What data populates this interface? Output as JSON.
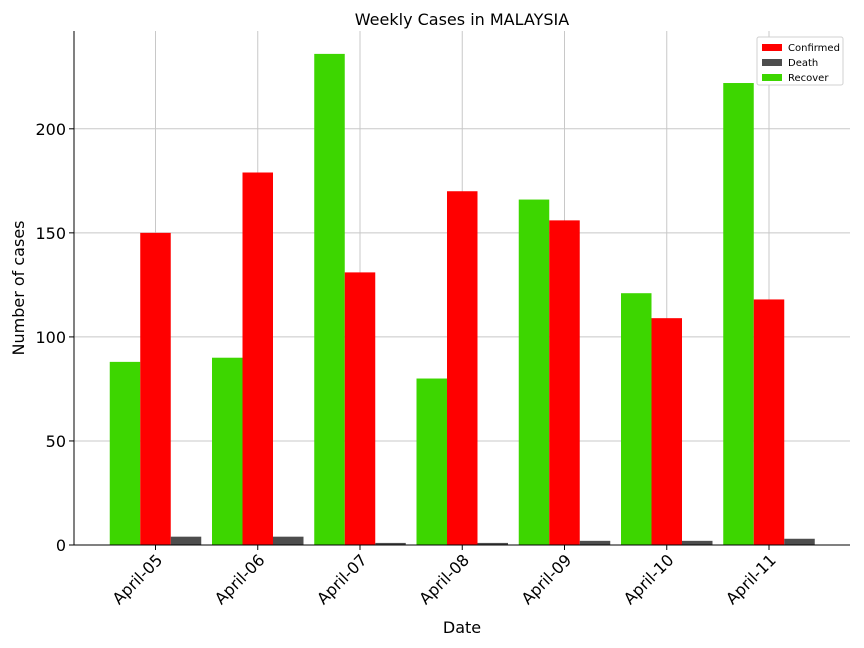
{
  "chart_data": {
    "type": "bar",
    "title": "Weekly Cases in MALAYSIA",
    "xlabel": "Date",
    "ylabel": "Number of cases",
    "categories": [
      "April-05",
      "April-06",
      "April-07",
      "April-08",
      "April-09",
      "April-10",
      "April-11"
    ],
    "series": [
      {
        "name": "Recover",
        "color": "#3dd600",
        "values": [
          88,
          90,
          236,
          80,
          166,
          121,
          222
        ]
      },
      {
        "name": "Confirmed",
        "color": "#ff0000",
        "values": [
          150,
          179,
          131,
          170,
          156,
          109,
          118
        ]
      },
      {
        "name": "Death",
        "color": "#4d4d4d",
        "values": [
          4,
          4,
          1,
          1,
          2,
          2,
          3
        ]
      }
    ],
    "legend_order": [
      "Confirmed",
      "Death",
      "Recover"
    ],
    "ylim": [
      0,
      247
    ],
    "yticks": [
      0,
      50,
      100,
      150,
      200
    ],
    "grid": true,
    "legend_position": "top-right"
  }
}
